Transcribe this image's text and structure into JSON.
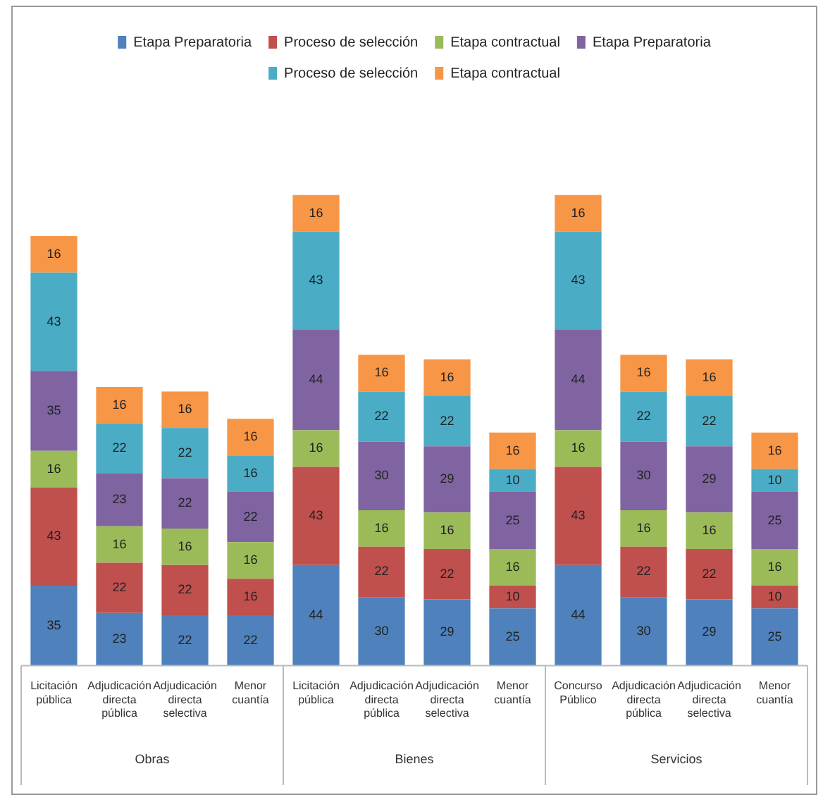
{
  "chart_data": {
    "type": "bar",
    "stacked": true,
    "data_labels": true,
    "legend": "top",
    "grid": false,
    "categories": [
      "Licitación pública",
      "Adjudicación directa pública",
      "Adjudicación directa selectiva",
      "Menor cuantía",
      "Licitación pública",
      "Adjudicación directa pública",
      "Adjudicación directa selectiva",
      "Menor cuantía",
      "Concurso Público",
      "Adjudicación directa pública",
      "Adjudicación directa selectiva",
      "Menor cuantía"
    ],
    "series": [
      {
        "name": "Etapa Preparatoria",
        "color": "#4f81bd",
        "values": [
          35,
          23,
          22,
          22,
          44,
          30,
          29,
          25,
          44,
          30,
          29,
          25
        ]
      },
      {
        "name": "Proceso de selección",
        "color": "#c0504d",
        "values": [
          43,
          22,
          22,
          16,
          43,
          22,
          22,
          10,
          43,
          22,
          22,
          10
        ]
      },
      {
        "name": "Etapa contractual",
        "color": "#9bbb59",
        "values": [
          16,
          16,
          16,
          16,
          16,
          16,
          16,
          16,
          16,
          16,
          16,
          16
        ]
      },
      {
        "name": "Etapa Preparatoria",
        "color": "#8064a2",
        "values": [
          35,
          23,
          22,
          22,
          44,
          30,
          29,
          25,
          44,
          30,
          29,
          25
        ]
      },
      {
        "name": "Proceso de selección",
        "color": "#4bacc6",
        "values": [
          43,
          22,
          22,
          16,
          43,
          22,
          22,
          10,
          43,
          22,
          22,
          10
        ]
      },
      {
        "name": "Etapa contractual",
        "color": "#f79646",
        "values": [
          16,
          16,
          16,
          16,
          16,
          16,
          16,
          16,
          16,
          16,
          16,
          16
        ]
      }
    ],
    "annotations": [
      "Obras",
      "Bienes",
      "Servicios"
    ]
  }
}
